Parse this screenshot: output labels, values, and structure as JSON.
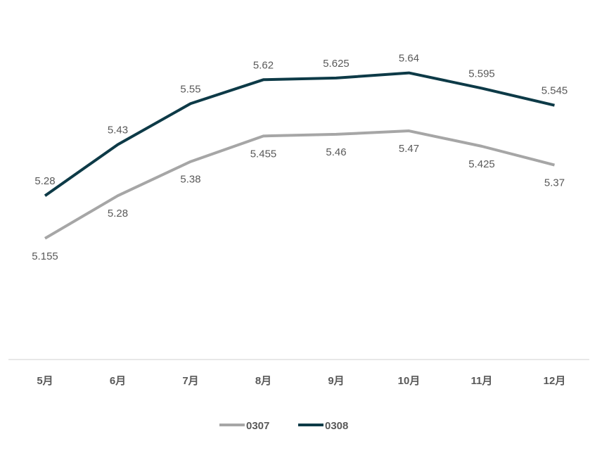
{
  "chart_data": {
    "type": "line",
    "title": "",
    "xlabel": "",
    "ylabel": "",
    "categories": [
      "5月",
      "6月",
      "7月",
      "8月",
      "9月",
      "10月",
      "11月",
      "12月"
    ],
    "series": [
      {
        "name": "0307",
        "values": [
          5.155,
          5.28,
          5.38,
          5.455,
          5.46,
          5.47,
          5.425,
          5.37
        ],
        "labels": [
          "5.155",
          "5.28",
          "5.38",
          "5.455",
          "5.46",
          "5.47",
          "5.425",
          "5.37"
        ],
        "color": "#A6A6A6",
        "label_position": "below"
      },
      {
        "name": "0308",
        "values": [
          5.28,
          5.43,
          5.55,
          5.62,
          5.625,
          5.64,
          5.595,
          5.545
        ],
        "labels": [
          "5.28",
          "5.43",
          "5.55",
          "5.62",
          "5.625",
          "5.64",
          "5.595",
          "5.545"
        ],
        "color": "#0D3A47",
        "label_position": "above"
      }
    ],
    "ylim": [
      4.8,
      5.8
    ],
    "grid": false,
    "legend_position": "bottom",
    "axis_color": "#D9D9D9"
  }
}
